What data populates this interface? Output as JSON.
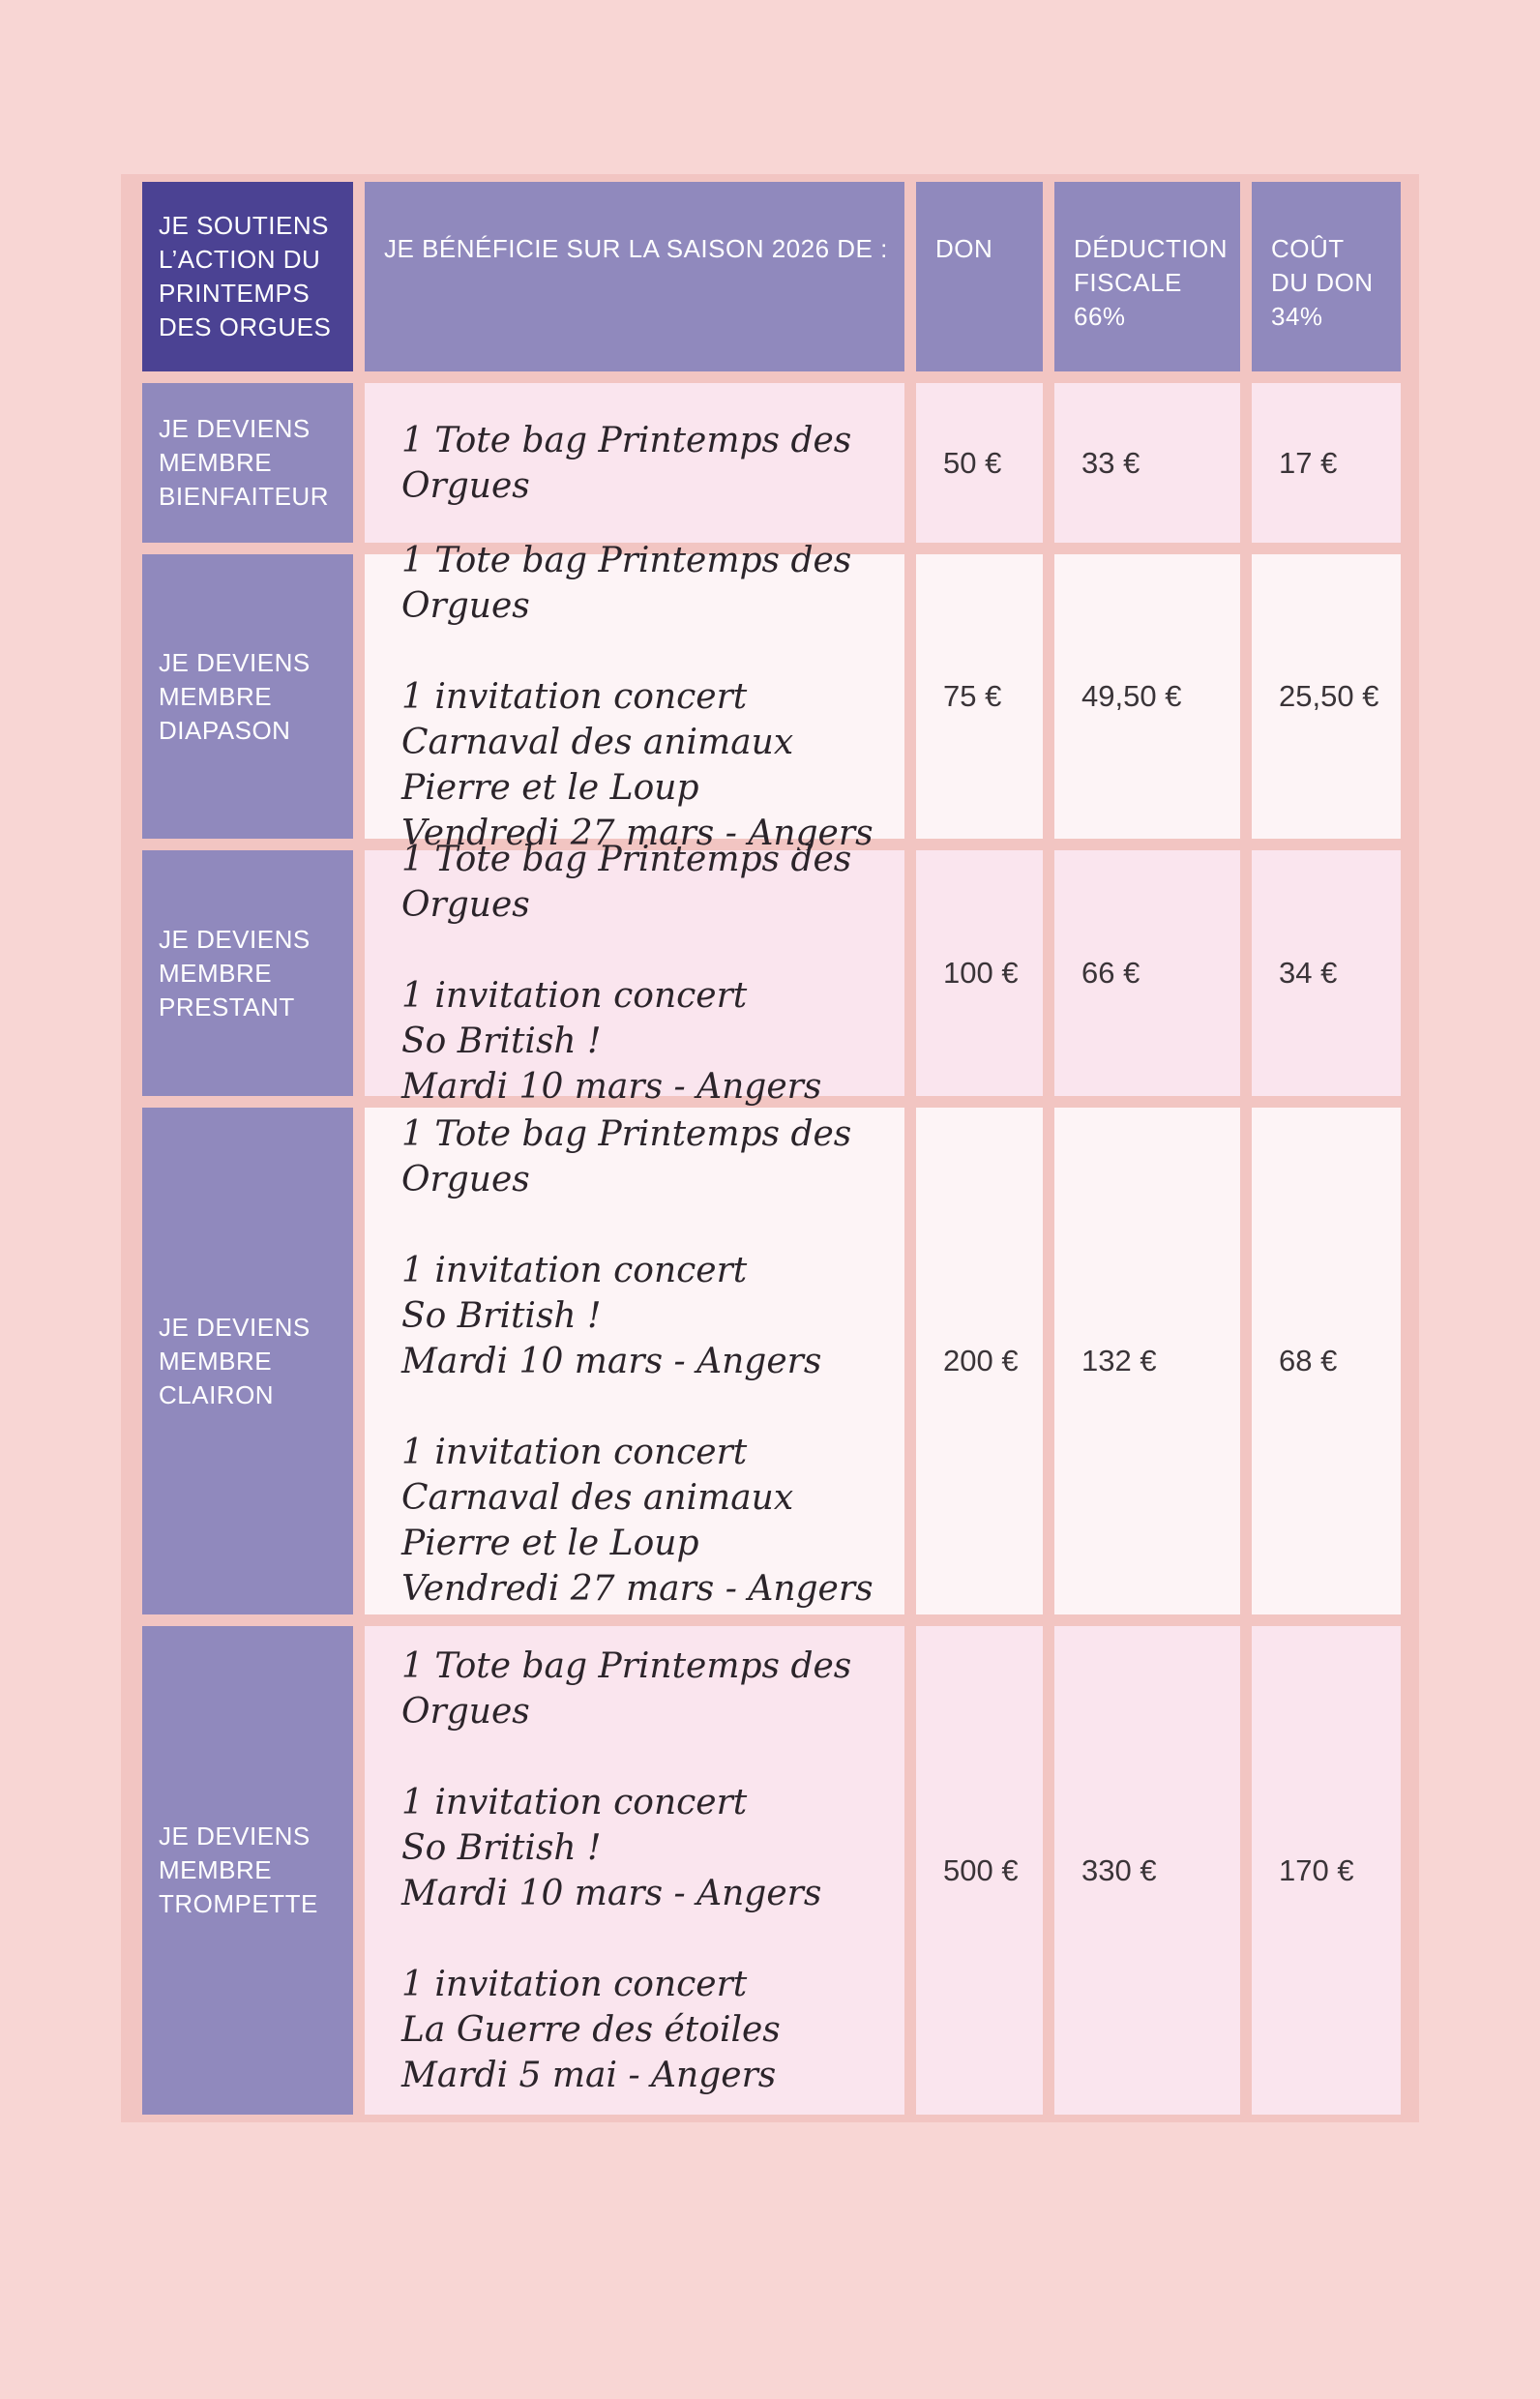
{
  "page": {
    "background_color": "#f8d6d4",
    "table_border_color": "#f2c5c2",
    "header_dark_color": "#4b4293",
    "header_purple_color": "#9089bd",
    "cell_pink_color": "#fae5ee",
    "cell_light_color": "#fdf4f6"
  },
  "table": {
    "header": {
      "support": "JE SOUTIENS\nL’ACTION DU\nPRINTEMPS\nDES ORGUES",
      "benefit": "JE BÉNÉFICIE SUR LA SAISON 2026 DE :",
      "don": "DON",
      "deduction": "DÉDUCTION\nFISCALE\n66%",
      "cout": "COÛT\nDU DON\n34%"
    },
    "rows": [
      {
        "label": "JE DEVIENS\nMEMBRE\nBIENFAITEUR",
        "benefits": [
          "1 Tote bag Printemps des Orgues"
        ],
        "don": "50 €",
        "deduction": "33 €",
        "cout": "17 €"
      },
      {
        "label": "JE DEVIENS\nMEMBRE\nDIAPASON",
        "benefits": [
          "1 Tote bag Printemps des Orgues",
          "1 invitation concert\nCarnaval des animaux\nPierre et le Loup\nVendredi 27 mars - Angers"
        ],
        "don": "75 €",
        "deduction": "49,50 €",
        "cout": "25,50 €"
      },
      {
        "label": "JE DEVIENS\nMEMBRE\nPRESTANT",
        "benefits": [
          "1 Tote bag Printemps des Orgues",
          "1 invitation concert\nSo British !\nMardi 10 mars - Angers"
        ],
        "don": "100 €",
        "deduction": "66 €",
        "cout": "34 €"
      },
      {
        "label": "JE DEVIENS\nMEMBRE\nCLAIRON",
        "benefits": [
          "1 Tote bag Printemps des Orgues",
          "1 invitation concert\nSo British !\nMardi 10 mars - Angers",
          "1 invitation concert\nCarnaval des animaux\nPierre et le Loup\nVendredi 27 mars - Angers"
        ],
        "don": "200 €",
        "deduction": "132 €",
        "cout": "68 €"
      },
      {
        "label": "JE DEVIENS\nMEMBRE\nTROMPETTE",
        "benefits": [
          "1 Tote bag Printemps des Orgues",
          "1 invitation concert\nSo British !\nMardi 10 mars - Angers",
          "1 invitation concert\nLa Guerre des étoiles\nMardi 5 mai - Angers"
        ],
        "don": "500 €",
        "deduction": "330 €",
        "cout": "170 €"
      }
    ]
  }
}
